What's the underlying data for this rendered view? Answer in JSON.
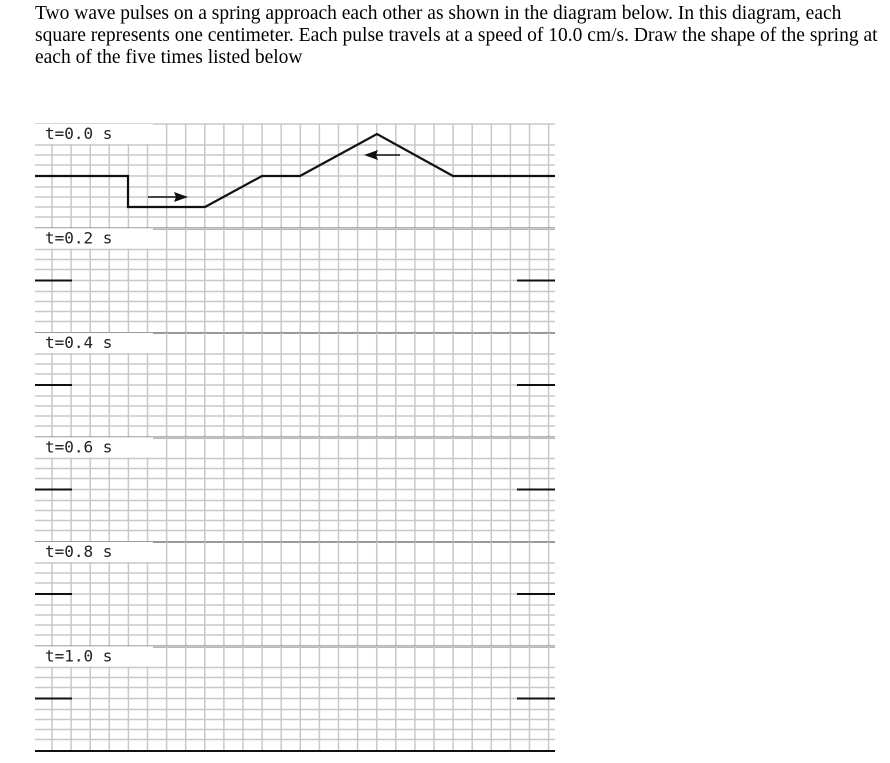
{
  "question": {
    "text": "Two wave pulses on a spring approach each other as shown in the diagram below. In this diagram, each square represents one centimeter. Each pulse travels at a speed of 10.0 cm/s. Draw the shape of the spring at each of the five times listed below"
  },
  "diagram": {
    "panels": [
      {
        "label": "t=0.0 s"
      },
      {
        "label": "t=0.2 s"
      },
      {
        "label": "t=0.4 s"
      },
      {
        "label": "t=0.6 s"
      },
      {
        "label": "t=0.8 s"
      },
      {
        "label": "t=1.0 s"
      }
    ],
    "colors": {
      "grid": "#c8c8c8",
      "line": "#111111"
    }
  }
}
